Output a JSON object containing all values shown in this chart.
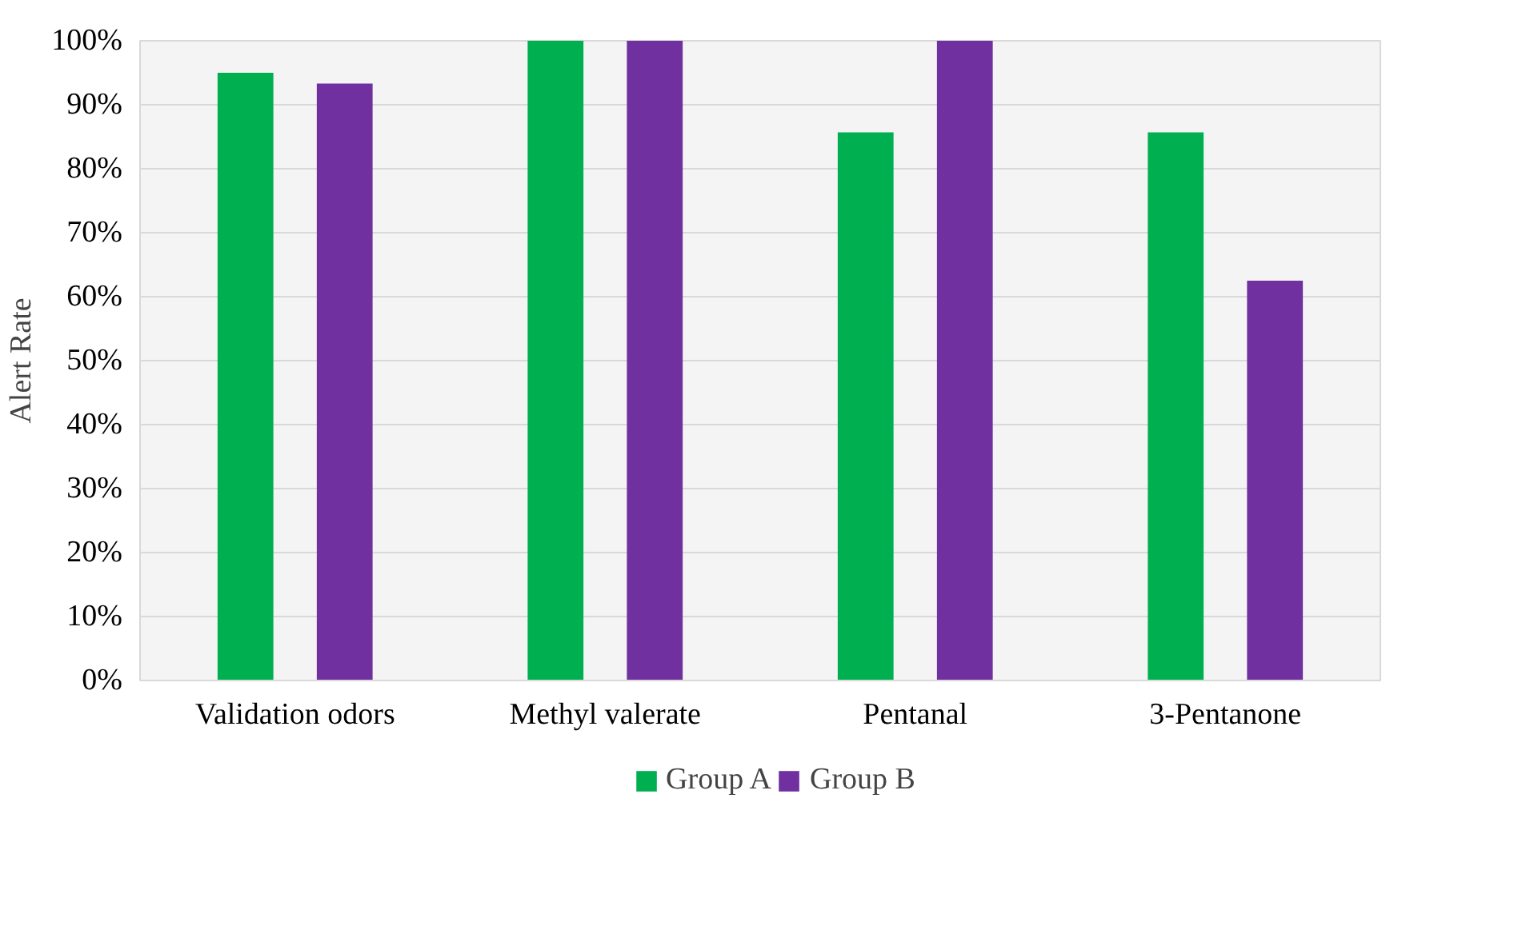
{
  "chart_data": {
    "type": "bar",
    "ylabel": "Alert Rate",
    "categories": [
      "Validation odors",
      "Methyl valerate",
      "Pentanal",
      "3-Pentanone"
    ],
    "series": [
      {
        "name": "Group A",
        "color": "#00b050",
        "values": [
          95,
          100,
          85.7,
          85.7
        ]
      },
      {
        "name": "Group B",
        "color": "#7030a0",
        "values": [
          93.3,
          100,
          100,
          62.5
        ]
      }
    ],
    "ylim": [
      0,
      100
    ],
    "yticks": [
      {
        "value": 0,
        "label": "0%"
      },
      {
        "value": 10,
        "label": "10%"
      },
      {
        "value": 20,
        "label": "20%"
      },
      {
        "value": 30,
        "label": "30%"
      },
      {
        "value": 40,
        "label": "40%"
      },
      {
        "value": 50,
        "label": "50%"
      },
      {
        "value": 60,
        "label": "60%"
      },
      {
        "value": 70,
        "label": "70%"
      },
      {
        "value": 80,
        "label": "80%"
      },
      {
        "value": 90,
        "label": "90%"
      },
      {
        "value": 100,
        "label": "100%"
      }
    ],
    "grid": "y",
    "legend": "bottom"
  }
}
